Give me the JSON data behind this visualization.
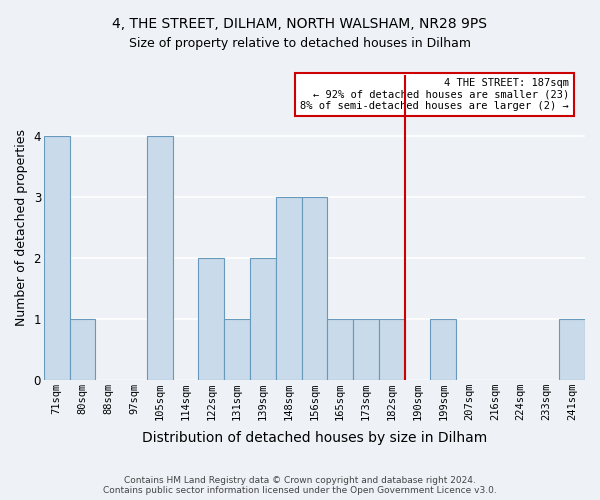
{
  "title": "4, THE STREET, DILHAM, NORTH WALSHAM, NR28 9PS",
  "subtitle": "Size of property relative to detached houses in Dilham",
  "xlabel": "Distribution of detached houses by size in Dilham",
  "ylabel": "Number of detached properties",
  "categories": [
    "71sqm",
    "80sqm",
    "88sqm",
    "97sqm",
    "105sqm",
    "114sqm",
    "122sqm",
    "131sqm",
    "139sqm",
    "148sqm",
    "156sqm",
    "165sqm",
    "173sqm",
    "182sqm",
    "190sqm",
    "199sqm",
    "207sqm",
    "216sqm",
    "224sqm",
    "233sqm",
    "241sqm"
  ],
  "values": [
    4,
    1,
    0,
    0,
    4,
    0,
    2,
    1,
    2,
    3,
    3,
    1,
    1,
    1,
    0,
    1,
    0,
    0,
    0,
    0,
    1
  ],
  "bar_color": "#c9daea",
  "bar_edge_color": "#6699bb",
  "vline_x_index": 13.5,
  "vline_color": "#cc0000",
  "annotation_text": "4 THE STREET: 187sqm\n← 92% of detached houses are smaller (23)\n8% of semi-detached houses are larger (2) →",
  "annotation_box_color": "#ffffff",
  "annotation_box_edge_color": "#cc0000",
  "ylim": [
    0,
    5
  ],
  "yticks": [
    0,
    1,
    2,
    3,
    4
  ],
  "footer": "Contains HM Land Registry data © Crown copyright and database right 2024.\nContains public sector information licensed under the Open Government Licence v3.0.",
  "background_color": "#eef2f7",
  "grid_color": "#ffffff",
  "title_fontsize": 10,
  "subtitle_fontsize": 9,
  "axis_label_fontsize": 9,
  "tick_fontsize": 7.5,
  "footer_fontsize": 6.5
}
